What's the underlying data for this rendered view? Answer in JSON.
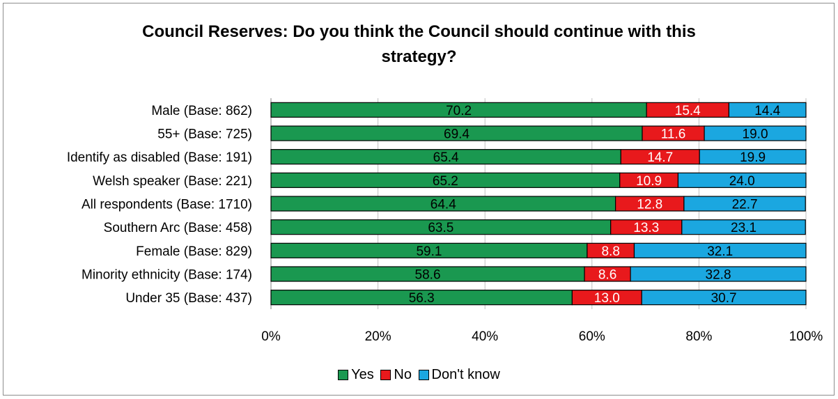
{
  "chart_data": {
    "type": "bar",
    "orientation": "horizontal",
    "stacked": true,
    "title_lines": [
      "Council Reserves: Do you think the Council should continue with this",
      "strategy?"
    ],
    "categories": [
      "Male (Base: 862)",
      "55+ (Base: 725)",
      "Identify as disabled (Base: 191)",
      "Welsh speaker (Base: 221)",
      "All respondents (Base: 1710)",
      "Southern Arc (Base: 458)",
      "Female (Base: 829)",
      "Minority ethnicity (Base: 174)",
      "Under 35 (Base: 437)"
    ],
    "series": [
      {
        "name": "Yes",
        "color": "#1a9850",
        "label_color": "#000000",
        "values": [
          70.2,
          69.4,
          65.4,
          65.2,
          64.4,
          63.5,
          59.1,
          58.6,
          56.3
        ],
        "labels": [
          "70.2",
          "69.4",
          "65.4",
          "65.2",
          "64.4",
          "63.5",
          "59.1",
          "58.6",
          "56.3"
        ]
      },
      {
        "name": "No",
        "color": "#e8191c",
        "label_color": "#ffffff",
        "values": [
          15.4,
          11.6,
          14.7,
          10.9,
          12.8,
          13.3,
          8.8,
          8.6,
          13.0
        ],
        "labels": [
          "15.4",
          "11.6",
          "14.7",
          "10.9",
          "12.8",
          "13.3",
          "8.8",
          "8.6",
          "13.0"
        ]
      },
      {
        "name": "Don't know",
        "color": "#1ba7e0",
        "label_color": "#000000",
        "values": [
          14.4,
          19.0,
          19.9,
          24.0,
          22.7,
          23.1,
          32.1,
          32.8,
          30.7
        ],
        "labels": [
          "14.4",
          "19.0",
          "19.9",
          "24.0",
          "22.7",
          "23.1",
          "32.1",
          "32.8",
          "30.7"
        ]
      }
    ],
    "x_ticks": [
      "0%",
      "20%",
      "40%",
      "60%",
      "80%",
      "100%"
    ],
    "xlim": [
      0,
      100
    ],
    "grid": "vertical",
    "legend_position": "bottom"
  }
}
